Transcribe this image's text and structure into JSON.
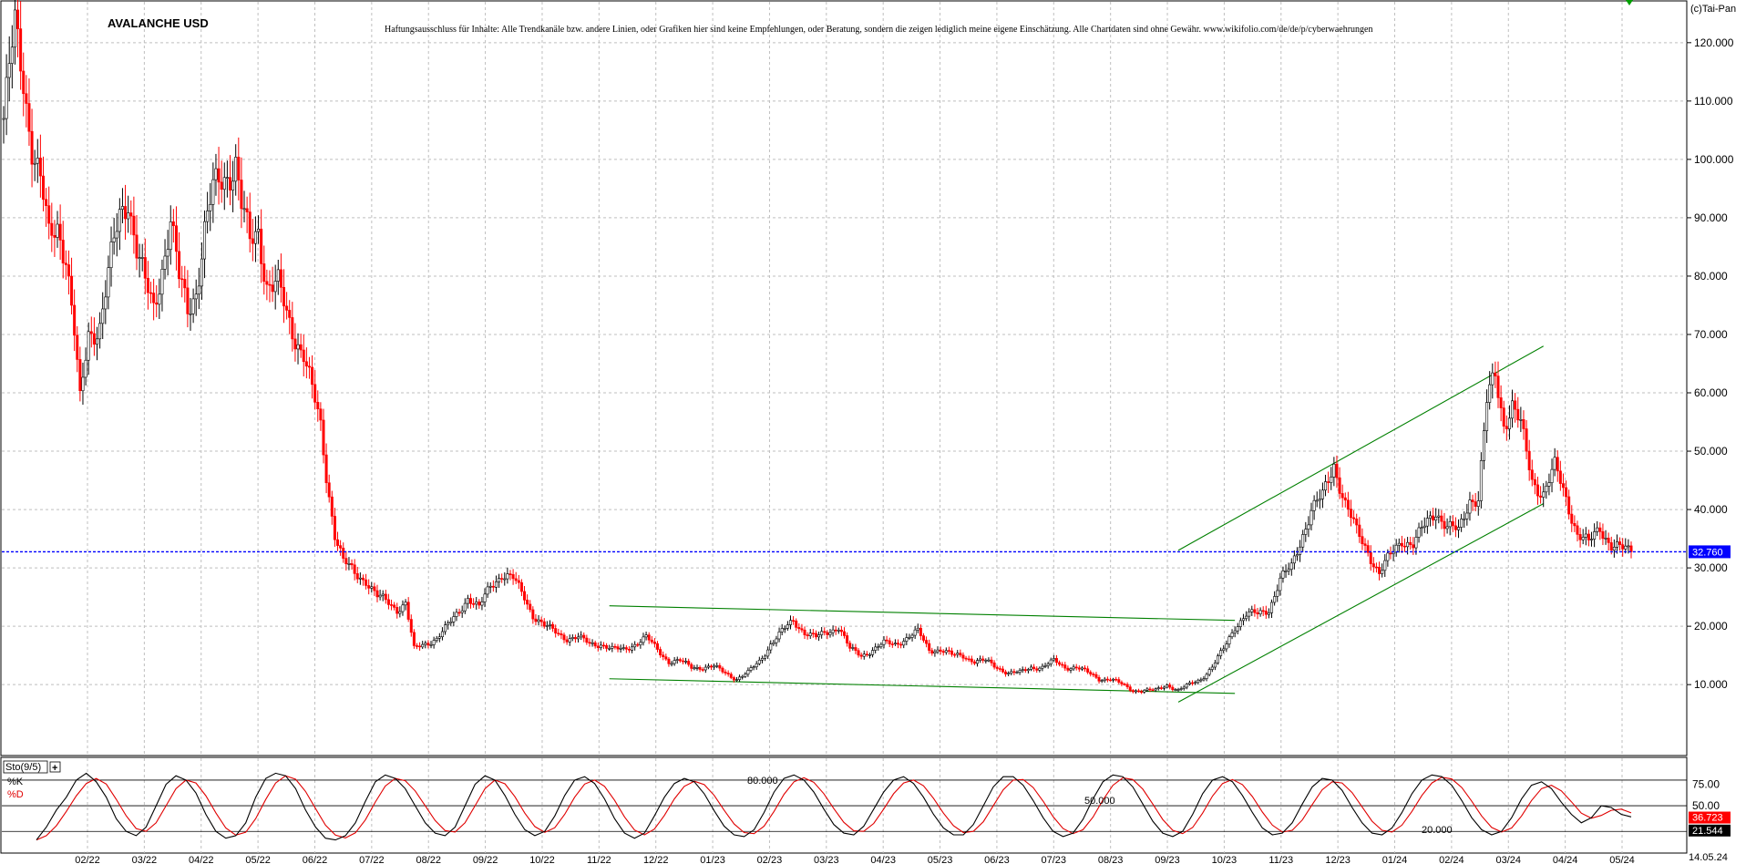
{
  "chart_data": {
    "type": "candlestick",
    "title": "AVALANCHE USD",
    "copyright": "(c)Tai-Pan",
    "disclaimer": "Haftungsausschluss für Inhalte: Alle Trendkanäle bzw. andere Linien, oder Grafiken hier sind keine Empfehlungen, oder Beratung, sondern die zeigen lediglich meine eigene Einschätzung. Alle Chartdaten sind ohne Gewähr.  www.wikifolio.com/de/de/p/cyberwaehrungen",
    "y_ticks": [
      "120.000",
      "110.000",
      "100.000",
      "90.000",
      "80.000",
      "70.000",
      "60.000",
      "50.000",
      "40.000",
      "30.000",
      "20.000",
      "10.000"
    ],
    "ylim": [
      -2,
      127
    ],
    "x_ticks": [
      "02/22",
      "03/22",
      "04/22",
      "05/22",
      "06/22",
      "07/22",
      "08/22",
      "09/22",
      "10/22",
      "11/22",
      "12/22",
      "01/23",
      "02/23",
      "03/23",
      "04/23",
      "05/23",
      "06/23",
      "07/23",
      "08/23",
      "09/23",
      "10/23",
      "11/23",
      "12/23",
      "01/24",
      "02/24",
      "03/24",
      "04/24",
      "05/24"
    ],
    "last_date": "14.05.24",
    "current_price": "32.760",
    "current_price_value": 32.76,
    "close_path": [
      [
        0,
        107
      ],
      [
        4,
        122
      ],
      [
        7,
        114
      ],
      [
        10,
        103
      ],
      [
        13,
        96
      ],
      [
        16,
        86
      ],
      [
        19,
        89
      ],
      [
        22,
        84
      ],
      [
        25,
        70
      ],
      [
        27,
        58
      ],
      [
        30,
        70
      ],
      [
        34,
        72
      ],
      [
        37,
        80
      ],
      [
        41,
        90
      ],
      [
        44,
        94
      ],
      [
        47,
        85
      ],
      [
        50,
        78
      ],
      [
        53,
        74
      ],
      [
        56,
        82
      ],
      [
        59,
        90
      ],
      [
        62,
        79
      ],
      [
        65,
        74
      ],
      [
        68,
        78
      ],
      [
        71,
        88
      ],
      [
        74,
        94
      ],
      [
        78,
        97
      ],
      [
        82,
        100
      ],
      [
        84,
        92
      ],
      [
        87,
        85
      ],
      [
        90,
        88
      ],
      [
        93,
        79
      ],
      [
        97,
        78
      ],
      [
        100,
        73
      ],
      [
        103,
        70
      ],
      [
        106,
        67
      ],
      [
        109,
        60
      ],
      [
        112,
        54
      ],
      [
        114,
        46
      ],
      [
        117,
        36
      ],
      [
        120,
        31
      ],
      [
        124,
        29
      ],
      [
        128,
        28
      ],
      [
        132,
        25
      ],
      [
        136,
        24
      ],
      [
        139,
        23
      ],
      [
        142,
        24
      ],
      [
        145,
        16
      ],
      [
        149,
        17
      ],
      [
        153,
        18
      ],
      [
        157,
        20
      ],
      [
        160,
        22
      ],
      [
        164,
        25
      ],
      [
        168,
        23
      ],
      [
        172,
        27
      ],
      [
        176,
        29
      ],
      [
        180,
        28
      ],
      [
        184,
        25
      ],
      [
        187,
        22
      ],
      [
        191,
        20
      ],
      [
        195,
        19
      ],
      [
        199,
        18
      ],
      [
        203,
        18
      ],
      [
        207,
        17
      ],
      [
        211,
        17
      ],
      [
        215,
        16
      ],
      [
        219,
        16
      ],
      [
        223,
        17
      ],
      [
        227,
        18
      ],
      [
        231,
        16
      ],
      [
        235,
        14
      ],
      [
        239,
        14
      ],
      [
        243,
        13
      ],
      [
        247,
        13
      ],
      [
        251,
        13
      ],
      [
        255,
        12
      ],
      [
        259,
        11
      ],
      [
        263,
        12
      ],
      [
        267,
        14
      ],
      [
        271,
        17
      ],
      [
        275,
        19
      ],
      [
        279,
        21
      ],
      [
        283,
        19
      ],
      [
        287,
        18
      ],
      [
        291,
        19
      ],
      [
        295,
        20
      ],
      [
        299,
        16
      ],
      [
        303,
        15
      ],
      [
        307,
        16
      ],
      [
        311,
        17
      ],
      [
        315,
        17
      ],
      [
        319,
        18
      ],
      [
        323,
        19
      ],
      [
        327,
        16
      ],
      [
        331,
        16
      ],
      [
        335,
        15
      ],
      [
        339,
        15
      ],
      [
        343,
        14
      ],
      [
        347,
        14
      ],
      [
        351,
        13
      ],
      [
        355,
        12
      ],
      [
        359,
        12
      ],
      [
        363,
        13
      ],
      [
        367,
        13
      ],
      [
        371,
        14
      ],
      [
        375,
        13
      ],
      [
        379,
        13
      ],
      [
        383,
        12
      ],
      [
        387,
        11
      ],
      [
        391,
        11
      ],
      [
        395,
        10
      ],
      [
        399,
        9
      ],
      [
        403,
        9
      ],
      [
        407,
        9
      ],
      [
        411,
        10
      ],
      [
        415,
        9
      ],
      [
        419,
        10
      ],
      [
        423,
        11
      ],
      [
        427,
        13
      ],
      [
        431,
        16
      ],
      [
        435,
        20
      ],
      [
        439,
        22
      ],
      [
        443,
        22
      ],
      [
        447,
        23
      ],
      [
        451,
        28
      ],
      [
        455,
        30
      ],
      [
        459,
        36
      ],
      [
        462,
        40
      ],
      [
        466,
        42
      ],
      [
        470,
        48
      ],
      [
        474,
        41
      ],
      [
        478,
        36
      ],
      [
        482,
        33
      ],
      [
        486,
        29
      ],
      [
        490,
        32
      ],
      [
        494,
        35
      ],
      [
        498,
        34
      ],
      [
        502,
        37
      ],
      [
        506,
        40
      ],
      [
        510,
        37
      ],
      [
        514,
        36
      ],
      [
        518,
        42
      ],
      [
        521,
        42
      ],
      [
        524,
        58
      ],
      [
        527,
        63
      ],
      [
        530,
        55
      ],
      [
        533,
        58
      ],
      [
        536,
        54
      ],
      [
        540,
        45
      ],
      [
        544,
        43
      ],
      [
        548,
        47
      ],
      [
        552,
        42
      ],
      [
        556,
        36
      ],
      [
        560,
        34
      ],
      [
        564,
        37
      ],
      [
        568,
        34
      ],
      [
        572,
        33
      ],
      [
        575,
        32.76
      ]
    ],
    "trend_lines": [
      {
        "from": [
          214,
          23.5
        ],
        "to": [
          435,
          21.0
        ]
      },
      {
        "from": [
          214,
          11.0
        ],
        "to": [
          435,
          8.5
        ]
      },
      {
        "from": [
          415,
          33
        ],
        "to": [
          544,
          68
        ]
      },
      {
        "from": [
          415,
          7
        ],
        "to": [
          544,
          41
        ]
      }
    ],
    "sto": {
      "label": "Sto(9/5)",
      "legend_k": "%K",
      "legend_d": "%D",
      "ticks": [
        "75.00",
        "50.00"
      ],
      "levels": {
        "upper": "80.000",
        "mid": "50.000",
        "lower": "20.000"
      },
      "k_value": "36.723",
      "d_value": "21.544",
      "ylim": [
        0,
        100
      ],
      "k": [
        10,
        25,
        45,
        60,
        80,
        88,
        78,
        60,
        35,
        20,
        15,
        25,
        50,
        75,
        85,
        80,
        65,
        40,
        20,
        12,
        15,
        30,
        60,
        82,
        88,
        85,
        70,
        45,
        25,
        12,
        10,
        15,
        30,
        55,
        78,
        86,
        82,
        70,
        50,
        30,
        18,
        15,
        25,
        50,
        75,
        85,
        80,
        62,
        40,
        22,
        15,
        20,
        38,
        62,
        80,
        84,
        76,
        58,
        35,
        18,
        12,
        18,
        38,
        60,
        76,
        82,
        78,
        64,
        44,
        26,
        16,
        14,
        22,
        42,
        66,
        82,
        86,
        80,
        66,
        46,
        28,
        18,
        16,
        26,
        46,
        66,
        80,
        84,
        76,
        60,
        40,
        24,
        16,
        16,
        28,
        50,
        72,
        84,
        84,
        74,
        56,
        36,
        20,
        14,
        18,
        34,
        58,
        78,
        86,
        84,
        72,
        52,
        32,
        18,
        14,
        20,
        40,
        64,
        80,
        84,
        78,
        62,
        42,
        24,
        16,
        18,
        30,
        52,
        72,
        82,
        80,
        68,
        48,
        30,
        18,
        16,
        24,
        42,
        64,
        80,
        86,
        84,
        74,
        56,
        36,
        22,
        16,
        20,
        36,
        58,
        74,
        78,
        70,
        54,
        40,
        30,
        36,
        50,
        48,
        40,
        37
      ]
    },
    "grid": true
  }
}
